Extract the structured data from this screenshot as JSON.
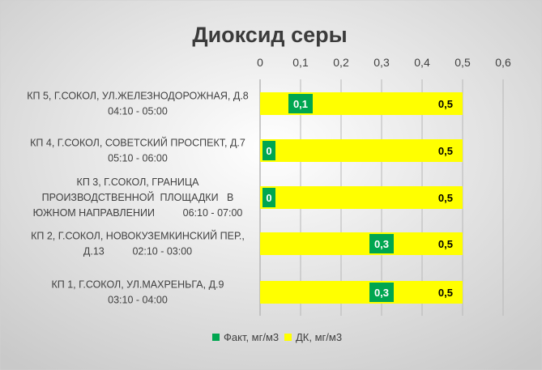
{
  "chart_data": {
    "type": "bar",
    "orientation": "horizontal",
    "title": "Диоксид  серы",
    "xlim": [
      0,
      0.6
    ],
    "x_ticks": [
      "0",
      "0,1",
      "0,2",
      "0,3",
      "0,4",
      "0,5",
      "0,6"
    ],
    "x_tick_values": [
      0,
      0.1,
      0.2,
      0.3,
      0.4,
      0.5,
      0.6
    ],
    "grid": true,
    "legend_position": "bottom",
    "categories": [
      [
        "КП 5, Г.СОКОЛ, УЛ.ЖЕЛЕЗНОДОРОЖНАЯ, Д.8",
        "04:10 - 05:00"
      ],
      [
        "КП 4, Г.СОКОЛ, СОВЕТСКИЙ ПРОСПЕКТ, Д.7",
        "05:10 - 06:00"
      ],
      [
        "КП 3, Г.СОКОЛ, ГРАНИЦА",
        "ПРОИЗВОДСТВЕННОЙ  ПЛОЩАДКИ   В",
        "ЮЖНОМ НАПРАВЛЕНИИ          06:10 - 07:00"
      ],
      [
        "КП 2, Г.СОКОЛ, НОВОКУЗЕМКИНСКИЙ ПЕР.,",
        "Д.13          02:10 - 03:00"
      ],
      [
        "КП 1, Г.СОКОЛ, УЛ.МАХРЕНЬГА, Д.9",
        "03:10 - 04:00"
      ]
    ],
    "series": [
      {
        "name": "Факт, мг/м3",
        "color": "#00a650",
        "label_color": "#ffffff",
        "values": [
          0.1,
          0,
          0,
          0.3,
          0.3
        ],
        "labels": [
          "0,1",
          "0",
          "0",
          "0,3",
          "0,3"
        ]
      },
      {
        "name": "ДК, мг/м3",
        "color": "#ffff00",
        "label_color": "#000000",
        "values": [
          0.5,
          0.5,
          0.5,
          0.5,
          0.5
        ],
        "labels": [
          "0,5",
          "0,5",
          "0,5",
          "0,5",
          "0,5"
        ]
      }
    ],
    "background_gradient": [
      "#ffffff",
      "#c9c9c9"
    ],
    "gridline_color": "#b8b8b8"
  }
}
